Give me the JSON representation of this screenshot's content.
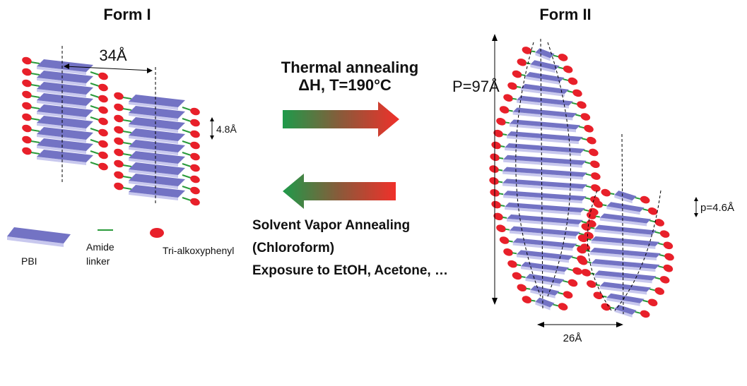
{
  "form1": {
    "title": "Form I",
    "width_label": "34Å",
    "spacing_label": "4.8Å"
  },
  "process": {
    "forward": [
      "Thermal annealing",
      "ΔH, T=190°C"
    ],
    "reverse": [
      "Solvent Vapor Annealing",
      "(Chloroform)",
      "Exposure to EtOH, Acetone, …"
    ]
  },
  "form2": {
    "title": "Form II",
    "pitch_label": "P=97Å",
    "spacing_label": "p=4.6Å",
    "width_label": "26Å"
  },
  "legend": {
    "pbi": "PBI",
    "linker": [
      "Amide",
      "linker"
    ],
    "end_group": "Tri-alkoxyphenyl"
  }
}
